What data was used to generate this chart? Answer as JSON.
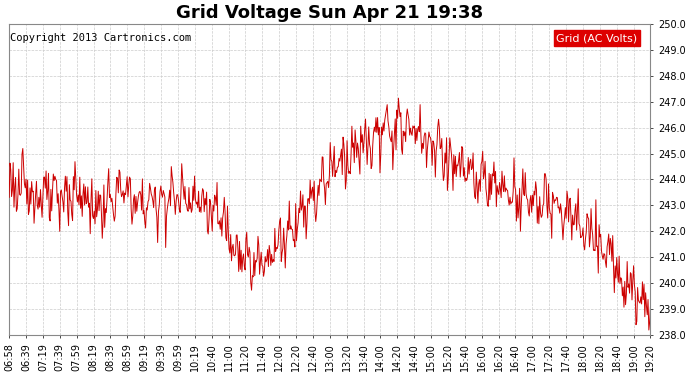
{
  "title": "Grid Voltage Sun Apr 21 19:38",
  "copyright": "Copyright 2013 Cartronics.com",
  "legend_label": "Grid (AC Volts)",
  "legend_bg": "#dd0000",
  "legend_fg": "#ffffff",
  "line_color": "#cc0000",
  "background_color": "#ffffff",
  "grid_color": "#cccccc",
  "ylim": [
    238.0,
    250.0
  ],
  "yticks": [
    238.0,
    239.0,
    240.0,
    241.0,
    242.0,
    243.0,
    244.0,
    245.0,
    246.0,
    247.0,
    248.0,
    249.0,
    250.0
  ],
  "xtick_labels": [
    "06:58",
    "06:39",
    "07:19",
    "07:39",
    "07:59",
    "08:19",
    "08:39",
    "08:59",
    "09:19",
    "09:39",
    "09:59",
    "10:19",
    "10:40",
    "11:00",
    "11:20",
    "11:40",
    "12:00",
    "12:20",
    "12:40",
    "13:00",
    "13:20",
    "13:40",
    "14:00",
    "14:20",
    "14:40",
    "15:00",
    "15:20",
    "15:40",
    "16:00",
    "16:20",
    "16:40",
    "17:00",
    "17:20",
    "17:40",
    "18:00",
    "18:20",
    "18:40",
    "19:00",
    "19:20"
  ],
  "title_fontsize": 13,
  "copyright_fontsize": 7.5,
  "tick_fontsize": 7,
  "legend_fontsize": 8,
  "line_width": 0.7
}
